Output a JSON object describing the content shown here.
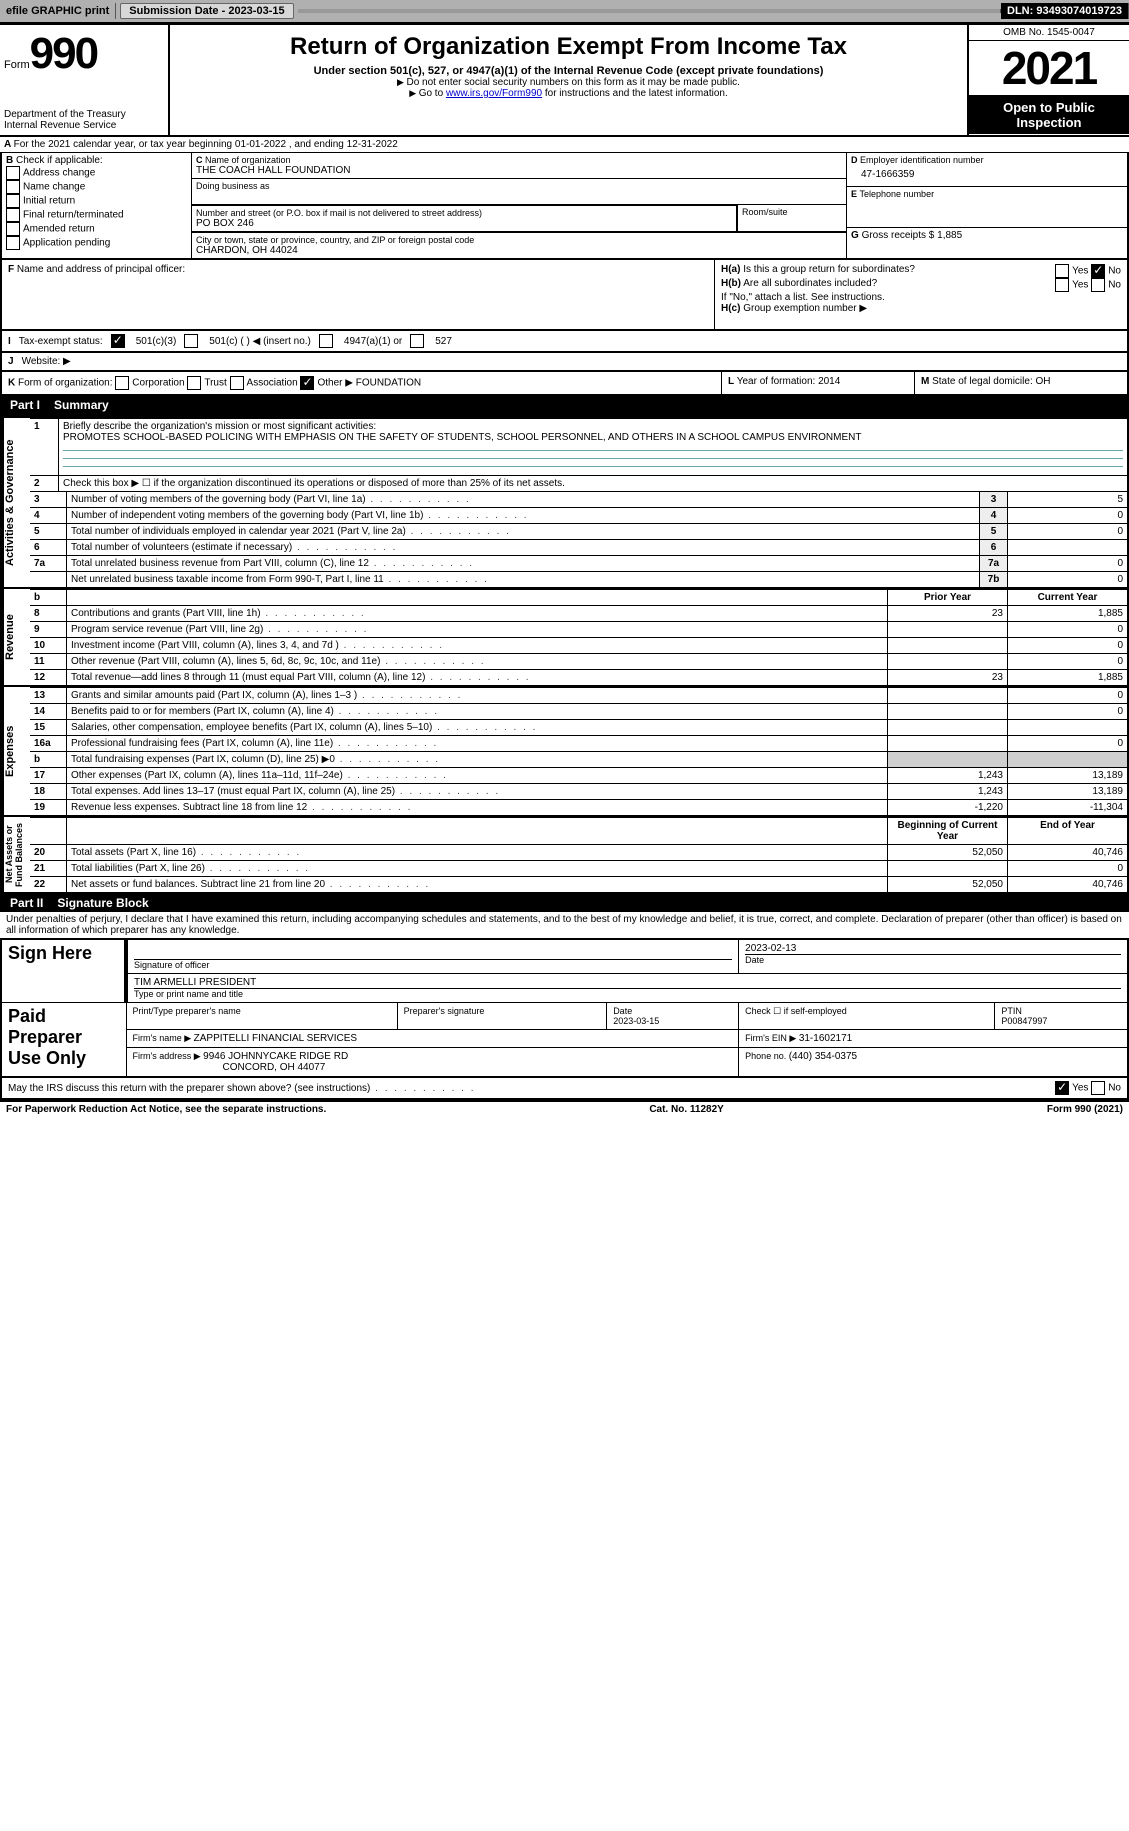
{
  "topbar": {
    "efile": "efile GRAPHIC print",
    "submission_label": "Submission Date - ",
    "submission_date": "2023-03-15",
    "dln_label": "DLN: ",
    "dln": "93493074019723"
  },
  "header": {
    "form_word": "Form",
    "form_num": "990",
    "dept": "Department of the Treasury\nInternal Revenue Service",
    "title": "Return of Organization Exempt From Income Tax",
    "subtitle": "Under section 501(c), 527, or 4947(a)(1) of the Internal Revenue Code (except private foundations)",
    "note1": "Do not enter social security numbers on this form as it may be made public.",
    "note2_pre": "Go to ",
    "note2_link": "www.irs.gov/Form990",
    "note2_post": " for instructions and the latest information.",
    "omb": "OMB No. 1545-0047",
    "year": "2021",
    "open": "Open to Public Inspection"
  },
  "entity": {
    "A_line": "For the 2021 calendar year, or tax year beginning 01-01-2022   , and ending 12-31-2022",
    "B_label": "Check if applicable:",
    "B_opts": [
      "Address change",
      "Name change",
      "Initial return",
      "Final return/terminated",
      "Amended return",
      "Application pending"
    ],
    "C_label": "Name of organization",
    "C_name": "THE COACH HALL FOUNDATION",
    "dba_label": "Doing business as",
    "addr_label": "Number and street (or P.O. box if mail is not delivered to street address)",
    "room_label": "Room/suite",
    "addr": "PO BOX 246",
    "city_label": "City or town, state or province, country, and ZIP or foreign postal code",
    "city": "CHARDON, OH  44024",
    "D_label": "Employer identification number",
    "D_ein": "47-1666359",
    "E_label": "Telephone number",
    "G_label": "Gross receipts $ ",
    "G_val": "1,885",
    "F_label": "Name and address of principal officer:",
    "H_a": "Is this a group return for subordinates?",
    "H_b": "Are all subordinates included?",
    "H_note": "If \"No,\" attach a list. See instructions.",
    "H_c": "Group exemption number ▶",
    "yes": "Yes",
    "no": "No",
    "Ha_no_checked": true,
    "I_label": "Tax-exempt status:",
    "I_opts": {
      "c3": "501(c)(3)",
      "c_blank": "501(c) (   ) ◀ (insert no.)",
      "a4947": "4947(a)(1) or",
      "s527": "527"
    },
    "I_c3_checked": true,
    "J_label": "Website: ▶",
    "K_label": "Form of organization:",
    "K_opts": [
      "Corporation",
      "Trust",
      "Association",
      "Other ▶"
    ],
    "K_other_val": "FOUNDATION",
    "K_other_checked": true,
    "L_label": "Year of formation: ",
    "L_val": "2014",
    "M_label": "State of legal domicile: ",
    "M_val": "OH"
  },
  "partI": {
    "hdr_num": "Part I",
    "hdr_title": "Summary",
    "line1_label": "Briefly describe the organization's mission or most significant activities:",
    "line1_text": "PROMOTES SCHOOL-BASED POLICING WITH EMPHASIS ON THE SAFETY OF STUDENTS, SCHOOL PERSONNEL, AND OTHERS IN A SCHOOL CAMPUS ENVIRONMENT",
    "line2": "Check this box ▶ ☐ if the organization discontinued its operations or disposed of more than 25% of its net assets.",
    "side_labels": {
      "ag": "Activities & Governance",
      "rev": "Revenue",
      "exp": "Expenses",
      "na": "Net Assets or\nFund Balances"
    },
    "rows_ag": [
      {
        "n": "3",
        "t": "Number of voting members of the governing body (Part VI, line 1a)",
        "box": "3",
        "v": "5"
      },
      {
        "n": "4",
        "t": "Number of independent voting members of the governing body (Part VI, line 1b)",
        "box": "4",
        "v": "0"
      },
      {
        "n": "5",
        "t": "Total number of individuals employed in calendar year 2021 (Part V, line 2a)",
        "box": "5",
        "v": "0"
      },
      {
        "n": "6",
        "t": "Total number of volunteers (estimate if necessary)",
        "box": "6",
        "v": ""
      },
      {
        "n": "7a",
        "t": "Total unrelated business revenue from Part VIII, column (C), line 12",
        "box": "7a",
        "v": "0"
      },
      {
        "n": "",
        "t": "Net unrelated business taxable income from Form 990-T, Part I, line 11",
        "box": "7b",
        "v": "0"
      }
    ],
    "col_hdr_prior": "Prior Year",
    "col_hdr_curr": "Current Year",
    "b_label": "b",
    "rows_rev": [
      {
        "n": "8",
        "t": "Contributions and grants (Part VIII, line 1h)",
        "p": "23",
        "c": "1,885"
      },
      {
        "n": "9",
        "t": "Program service revenue (Part VIII, line 2g)",
        "p": "",
        "c": "0"
      },
      {
        "n": "10",
        "t": "Investment income (Part VIII, column (A), lines 3, 4, and 7d )",
        "p": "",
        "c": "0"
      },
      {
        "n": "11",
        "t": "Other revenue (Part VIII, column (A), lines 5, 6d, 8c, 9c, 10c, and 11e)",
        "p": "",
        "c": "0"
      },
      {
        "n": "12",
        "t": "Total revenue—add lines 8 through 11 (must equal Part VIII, column (A), line 12)",
        "p": "23",
        "c": "1,885"
      }
    ],
    "rows_exp": [
      {
        "n": "13",
        "t": "Grants and similar amounts paid (Part IX, column (A), lines 1–3 )",
        "p": "",
        "c": "0"
      },
      {
        "n": "14",
        "t": "Benefits paid to or for members (Part IX, column (A), line 4)",
        "p": "",
        "c": "0"
      },
      {
        "n": "15",
        "t": "Salaries, other compensation, employee benefits (Part IX, column (A), lines 5–10)",
        "p": "",
        "c": ""
      },
      {
        "n": "16a",
        "t": "Professional fundraising fees (Part IX, column (A), line 11e)",
        "p": "",
        "c": "0"
      },
      {
        "n": "b",
        "t": "Total fundraising expenses (Part IX, column (D), line 25) ▶0",
        "p": "__grey__",
        "c": "__grey__"
      },
      {
        "n": "17",
        "t": "Other expenses (Part IX, column (A), lines 11a–11d, 11f–24e)",
        "p": "1,243",
        "c": "13,189"
      },
      {
        "n": "18",
        "t": "Total expenses. Add lines 13–17 (must equal Part IX, column (A), line 25)",
        "p": "1,243",
        "c": "13,189"
      },
      {
        "n": "19",
        "t": "Revenue less expenses. Subtract line 18 from line 12",
        "p": "-1,220",
        "c": "-11,304"
      }
    ],
    "col_hdr_begin": "Beginning of Current Year",
    "col_hdr_end": "End of Year",
    "rows_na": [
      {
        "n": "20",
        "t": "Total assets (Part X, line 16)",
        "p": "52,050",
        "c": "40,746"
      },
      {
        "n": "21",
        "t": "Total liabilities (Part X, line 26)",
        "p": "",
        "c": "0"
      },
      {
        "n": "22",
        "t": "Net assets or fund balances. Subtract line 21 from line 20",
        "p": "52,050",
        "c": "40,746"
      }
    ]
  },
  "partII": {
    "hdr_num": "Part II",
    "hdr_title": "Signature Block",
    "jurat": "Under penalties of perjury, I declare that I have examined this return, including accompanying schedules and statements, and to the best of my knowledge and belief, it is true, correct, and complete. Declaration of preparer (other than officer) is based on all information of which preparer has any knowledge.",
    "sign_here": "Sign Here",
    "sig_officer": "Signature of officer",
    "sig_date": "2023-02-13",
    "date_label": "Date",
    "name_title": "TIM ARMELLI PRESIDENT",
    "type_name": "Type or print name and title",
    "paid_prep": "Paid Preparer Use Only",
    "prep_name_l": "Print/Type preparer's name",
    "prep_sig_l": "Preparer's signature",
    "prep_date_l": "Date",
    "prep_date": "2023-03-15",
    "self_emp": "Check ☐ if self-employed",
    "ptin_l": "PTIN",
    "ptin": "P00847997",
    "firm_name_l": "Firm's name   ▶ ",
    "firm_name": "ZAPPITELLI FINANCIAL SERVICES",
    "firm_ein_l": "Firm's EIN ▶ ",
    "firm_ein": "31-1602171",
    "firm_addr_l": "Firm's address ▶ ",
    "firm_addr": "9946 JOHNNYCAKE RIDGE RD",
    "firm_city": "CONCORD, OH  44077",
    "phone_l": "Phone no. ",
    "phone": "(440) 354-0375",
    "discuss": "May the IRS discuss this return with the preparer shown above? (see instructions)",
    "discuss_yes_checked": true
  },
  "footer": {
    "left": "For Paperwork Reduction Act Notice, see the separate instructions.",
    "mid": "Cat. No. 11282Y",
    "right": "Form 990 (2021)"
  },
  "colors": {
    "topbar_bg": "#b0b0b0",
    "grey_cell": "#cfcfcf",
    "link": "#0000cc"
  }
}
